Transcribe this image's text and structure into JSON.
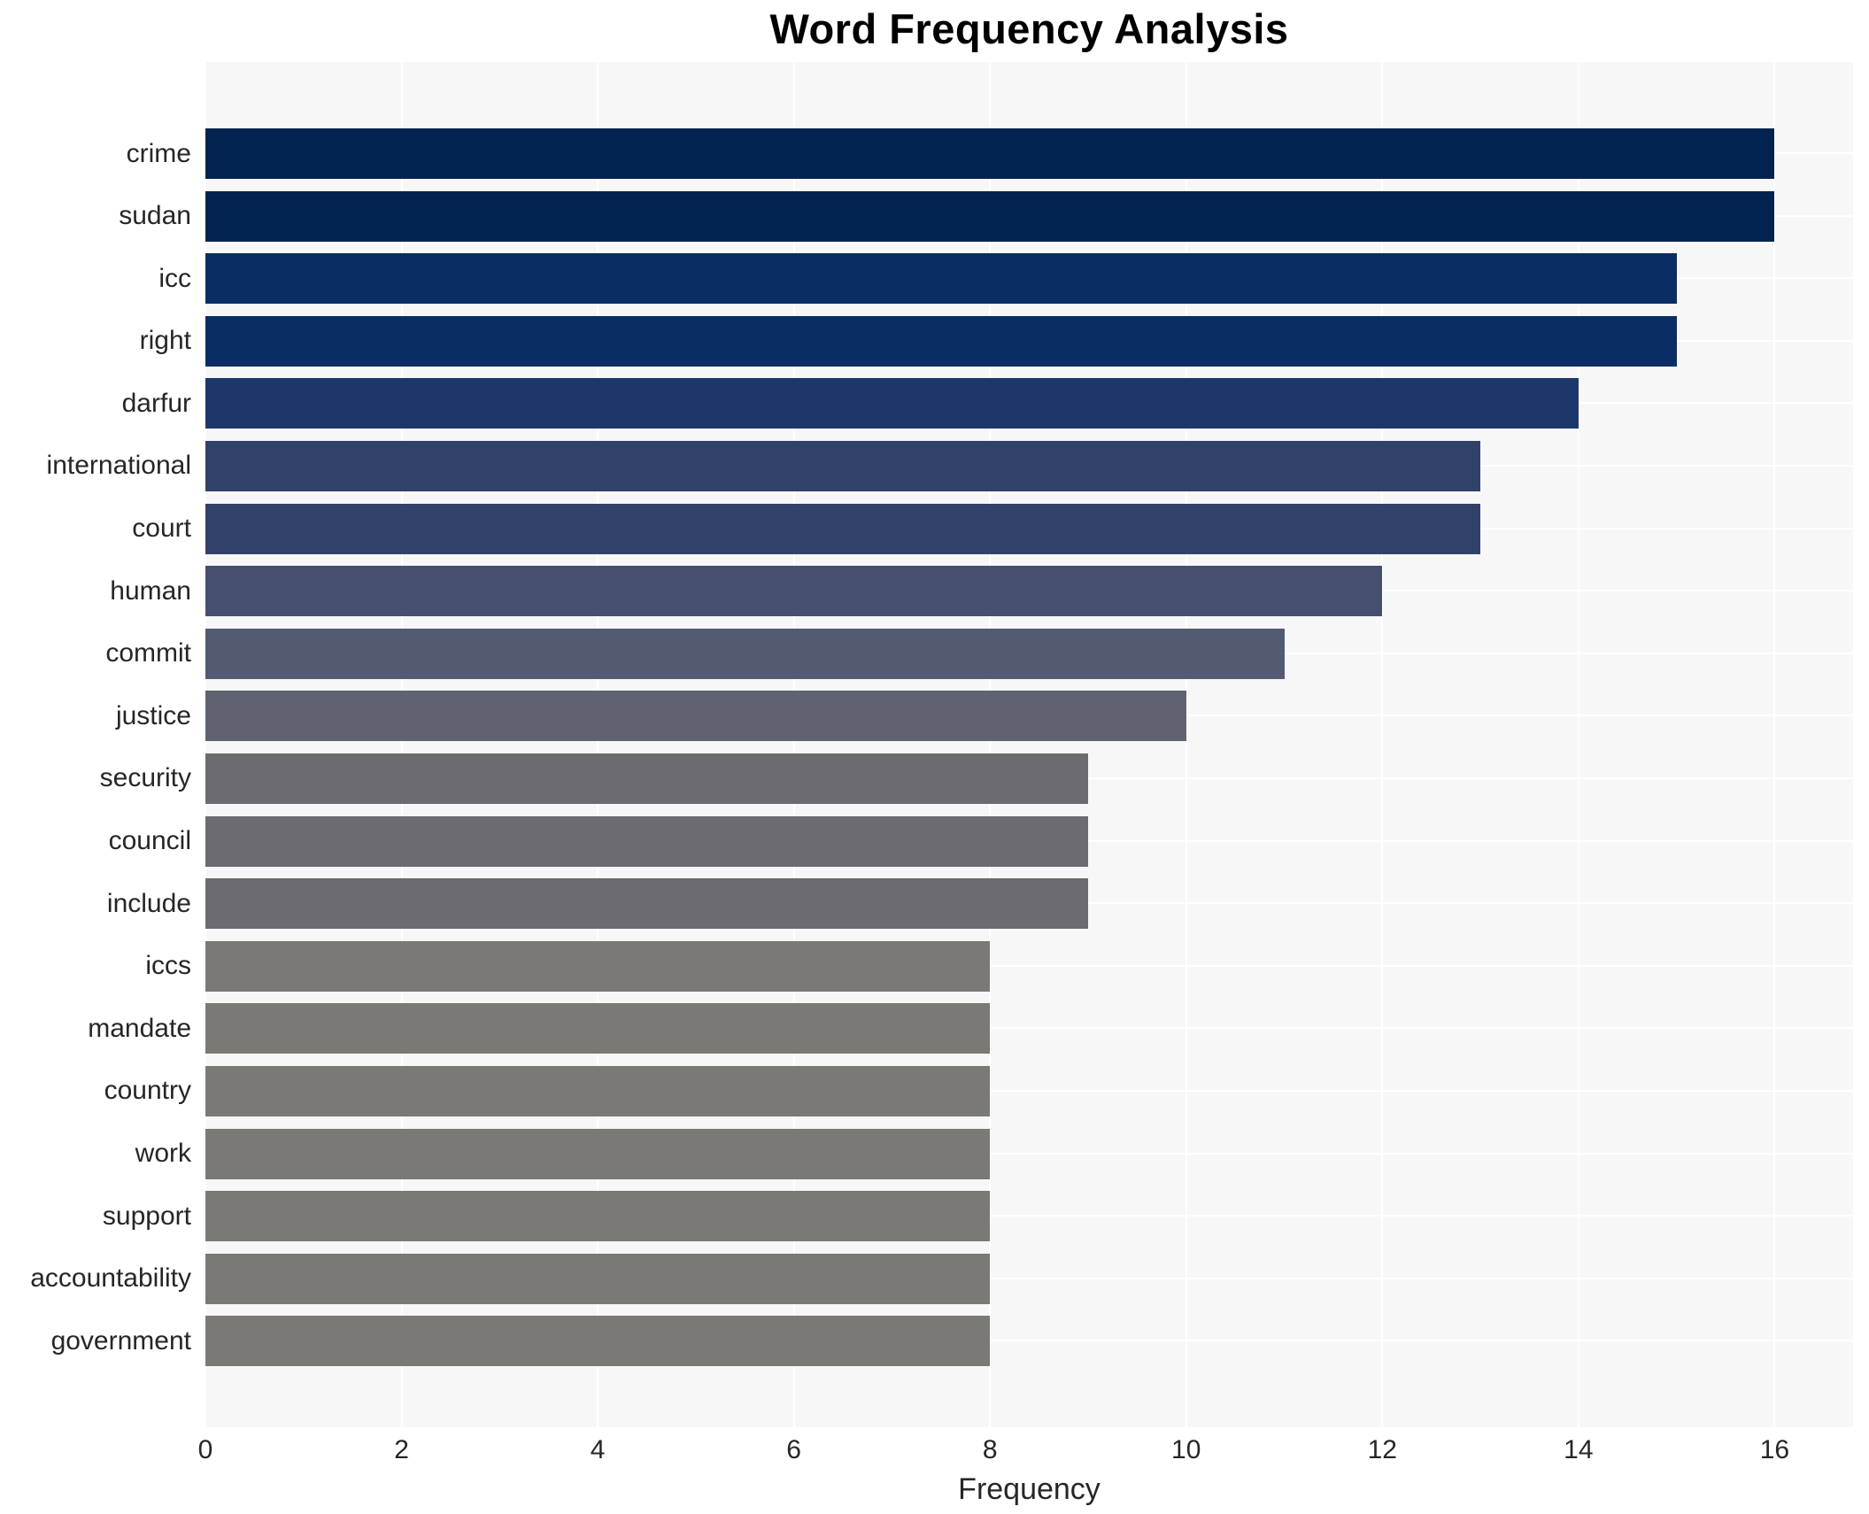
{
  "chart_data": {
    "type": "bar",
    "orientation": "horizontal",
    "title": "Word Frequency Analysis",
    "xlabel": "Frequency",
    "ylabel": "",
    "categories": [
      "crime",
      "sudan",
      "icc",
      "right",
      "darfur",
      "international",
      "court",
      "human",
      "commit",
      "justice",
      "security",
      "council",
      "include",
      "iccs",
      "mandate",
      "country",
      "work",
      "support",
      "accountability",
      "government"
    ],
    "values": [
      16,
      16,
      15,
      15,
      14,
      13,
      13,
      12,
      11,
      10,
      9,
      9,
      9,
      8,
      8,
      8,
      8,
      8,
      8,
      8
    ],
    "bar_colors": [
      "#02234e",
      "#02234e",
      "#0a2e63",
      "#0a2e63",
      "#1c376a",
      "#314168",
      "#314168",
      "#454f6e",
      "#535b72",
      "#5e636f",
      "#6c6c70",
      "#6c6c70",
      "#6c6c70",
      "#7b7973",
      "#7b7973",
      "#7b7973",
      "#7b7973",
      "#7b7973",
      "#7b7973",
      "#7b7973"
    ],
    "x_ticks": [
      0,
      2,
      4,
      6,
      8,
      10,
      12,
      14,
      16
    ],
    "xlim": [
      0,
      16.8
    ],
    "grid": true,
    "legend": "none",
    "plot_bg": "#f7f7f8",
    "grid_color": "#ffffff",
    "text_color": "#262626",
    "title_color": "#000000"
  }
}
